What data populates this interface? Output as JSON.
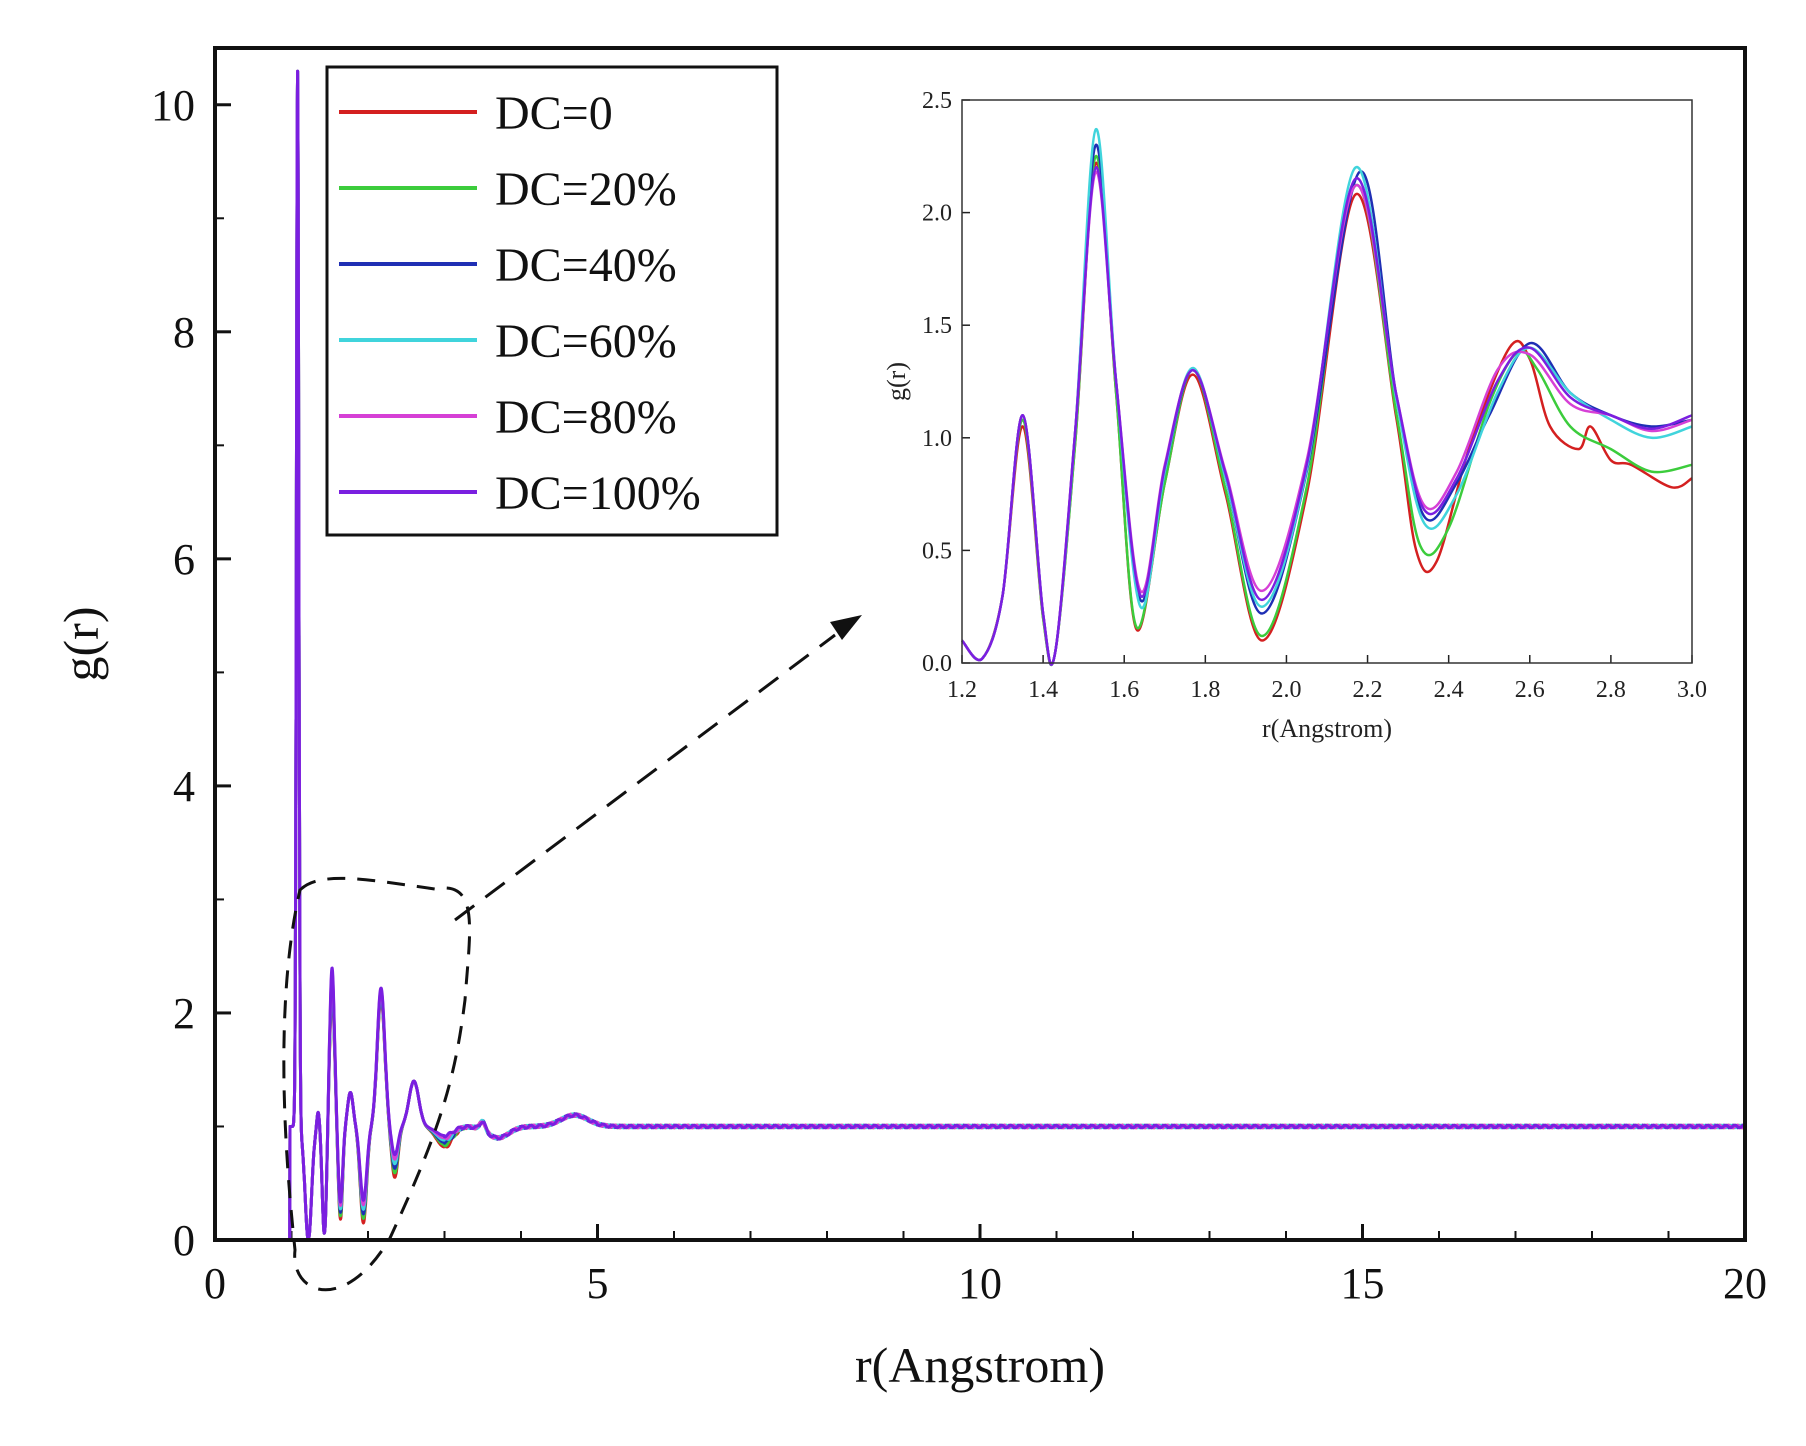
{
  "chart_data": [
    {
      "type": "line",
      "role": "main",
      "xlabel": "r(Angstrom)",
      "ylabel": "g(r)",
      "xlim": [
        0,
        20
      ],
      "ylim": [
        0,
        10.5
      ],
      "xticks": [
        0,
        5,
        10,
        15,
        20
      ],
      "yticks": [
        0,
        2,
        4,
        6,
        8,
        10
      ],
      "xtick_labels": [
        "0",
        "5",
        "10",
        "15",
        "20"
      ],
      "ytick_labels": [
        "0",
        "2",
        "4",
        "6",
        "8",
        "10"
      ],
      "grid": false,
      "legend_position": "top-left",
      "series": [
        {
          "name": "DC=0",
          "color": "#d42020",
          "final_value": 1.0
        },
        {
          "name": "DC=20%",
          "color": "#3ccc3c",
          "final_value": 1.0
        },
        {
          "name": "DC=40%",
          "color": "#1f2fb4",
          "final_value": 1.0
        },
        {
          "name": "DC=60%",
          "color": "#40d4dc",
          "final_value": 1.0
        },
        {
          "name": "DC=80%",
          "color": "#d640d6",
          "final_value": 1.0
        },
        {
          "name": "DC=100%",
          "color": "#7a1fe0",
          "final_value": 1.0
        }
      ],
      "key_points": {
        "first_peak": {
          "x": 1.08,
          "y": 10.25
        },
        "peaks": [
          [
            1.35,
            1.1
          ],
          [
            1.53,
            2.2
          ],
          [
            1.77,
            1.3
          ],
          [
            2.17,
            2.15
          ],
          [
            2.6,
            1.4
          ],
          [
            3.5,
            1.05
          ],
          [
            4.7,
            1.1
          ]
        ],
        "baseline": 1.0
      }
    },
    {
      "type": "line",
      "role": "inset",
      "xlabel": "r(Angstrom)",
      "ylabel": "g(r)",
      "xlim": [
        1.2,
        3.0
      ],
      "ylim": [
        0.0,
        2.5
      ],
      "xticks": [
        1.2,
        1.4,
        1.6,
        1.8,
        2.0,
        2.2,
        2.4,
        2.6,
        2.8,
        3.0
      ],
      "yticks": [
        0.0,
        0.5,
        1.0,
        1.5,
        2.0,
        2.5
      ],
      "xtick_labels": [
        "1.2",
        "1.4",
        "1.6",
        "1.8",
        "2.0",
        "2.2",
        "2.4",
        "2.6",
        "2.8",
        "3.0"
      ],
      "ytick_labels": [
        "0.0",
        "0.5",
        "1.0",
        "1.5",
        "2.0",
        "2.5"
      ],
      "grid": false,
      "series": [
        {
          "name": "DC=0",
          "color": "#d42020",
          "x": [
            1.2,
            1.25,
            1.3,
            1.35,
            1.4,
            1.43,
            1.48,
            1.53,
            1.58,
            1.63,
            1.7,
            1.77,
            1.85,
            1.94,
            2.05,
            2.17,
            2.27,
            2.32,
            2.37,
            2.45,
            2.55,
            2.6,
            2.65,
            2.72,
            2.75,
            2.8,
            2.85,
            2.95,
            3.0
          ],
          "y": [
            0.1,
            0.02,
            0.3,
            1.05,
            0.2,
            0.05,
            1.0,
            2.22,
            1.2,
            0.15,
            0.8,
            1.28,
            0.75,
            0.1,
            0.75,
            2.08,
            1.1,
            0.5,
            0.45,
            0.95,
            1.4,
            1.35,
            1.05,
            0.95,
            1.05,
            0.9,
            0.88,
            0.78,
            0.82
          ]
        },
        {
          "name": "DC=20%",
          "color": "#3ccc3c",
          "x": [
            1.2,
            1.25,
            1.3,
            1.35,
            1.4,
            1.43,
            1.48,
            1.53,
            1.58,
            1.63,
            1.7,
            1.77,
            1.85,
            1.94,
            2.05,
            2.17,
            2.27,
            2.33,
            2.4,
            2.5,
            2.57,
            2.62,
            2.7,
            2.8,
            2.9,
            3.0
          ],
          "y": [
            0.1,
            0.02,
            0.3,
            1.08,
            0.2,
            0.05,
            1.0,
            2.25,
            1.2,
            0.16,
            0.8,
            1.3,
            0.77,
            0.12,
            0.78,
            2.12,
            1.12,
            0.52,
            0.6,
            1.15,
            1.38,
            1.3,
            1.05,
            0.95,
            0.85,
            0.88
          ]
        },
        {
          "name": "DC=40%",
          "color": "#1f2fb4",
          "x": [
            1.2,
            1.25,
            1.3,
            1.35,
            1.4,
            1.43,
            1.48,
            1.53,
            1.58,
            1.64,
            1.7,
            1.77,
            1.85,
            1.94,
            2.05,
            2.18,
            2.27,
            2.34,
            2.42,
            2.5,
            2.6,
            2.7,
            2.8,
            2.9,
            3.0
          ],
          "y": [
            0.1,
            0.02,
            0.3,
            1.1,
            0.22,
            0.05,
            1.05,
            2.3,
            1.25,
            0.28,
            0.85,
            1.3,
            0.82,
            0.22,
            0.85,
            2.18,
            1.2,
            0.65,
            0.8,
            1.1,
            1.42,
            1.2,
            1.1,
            1.05,
            1.08
          ]
        },
        {
          "name": "DC=60%",
          "color": "#40d4dc",
          "x": [
            1.2,
            1.25,
            1.3,
            1.35,
            1.4,
            1.43,
            1.48,
            1.53,
            1.58,
            1.64,
            1.7,
            1.77,
            1.85,
            1.94,
            2.05,
            2.17,
            2.27,
            2.34,
            2.42,
            2.52,
            2.6,
            2.7,
            2.8,
            2.9,
            3.0
          ],
          "y": [
            0.1,
            0.02,
            0.3,
            1.1,
            0.22,
            0.05,
            1.05,
            2.37,
            1.25,
            0.25,
            0.85,
            1.31,
            0.82,
            0.25,
            0.86,
            2.2,
            1.18,
            0.62,
            0.75,
            1.2,
            1.4,
            1.2,
            1.08,
            1.0,
            1.05
          ]
        },
        {
          "name": "DC=80%",
          "color": "#d640d6",
          "x": [
            1.2,
            1.25,
            1.3,
            1.35,
            1.4,
            1.43,
            1.48,
            1.53,
            1.58,
            1.64,
            1.7,
            1.77,
            1.85,
            1.94,
            2.05,
            2.17,
            2.27,
            2.34,
            2.42,
            2.52,
            2.6,
            2.7,
            2.8,
            2.9,
            3.0
          ],
          "y": [
            0.1,
            0.02,
            0.3,
            1.1,
            0.22,
            0.05,
            1.05,
            2.18,
            1.25,
            0.32,
            0.88,
            1.3,
            0.85,
            0.32,
            0.9,
            2.12,
            1.2,
            0.7,
            0.85,
            1.3,
            1.37,
            1.15,
            1.1,
            1.03,
            1.08
          ]
        },
        {
          "name": "DC=100%",
          "color": "#7a1fe0",
          "x": [
            1.2,
            1.25,
            1.3,
            1.35,
            1.4,
            1.43,
            1.48,
            1.53,
            1.58,
            1.64,
            1.7,
            1.77,
            1.85,
            1.94,
            2.05,
            2.17,
            2.27,
            2.34,
            2.42,
            2.52,
            2.6,
            2.7,
            2.8,
            2.9,
            3.0
          ],
          "y": [
            0.1,
            0.02,
            0.3,
            1.1,
            0.22,
            0.05,
            1.05,
            2.2,
            1.25,
            0.3,
            0.87,
            1.3,
            0.84,
            0.28,
            0.88,
            2.15,
            1.2,
            0.68,
            0.82,
            1.25,
            1.4,
            1.18,
            1.1,
            1.04,
            1.1
          ]
        }
      ]
    }
  ]
}
